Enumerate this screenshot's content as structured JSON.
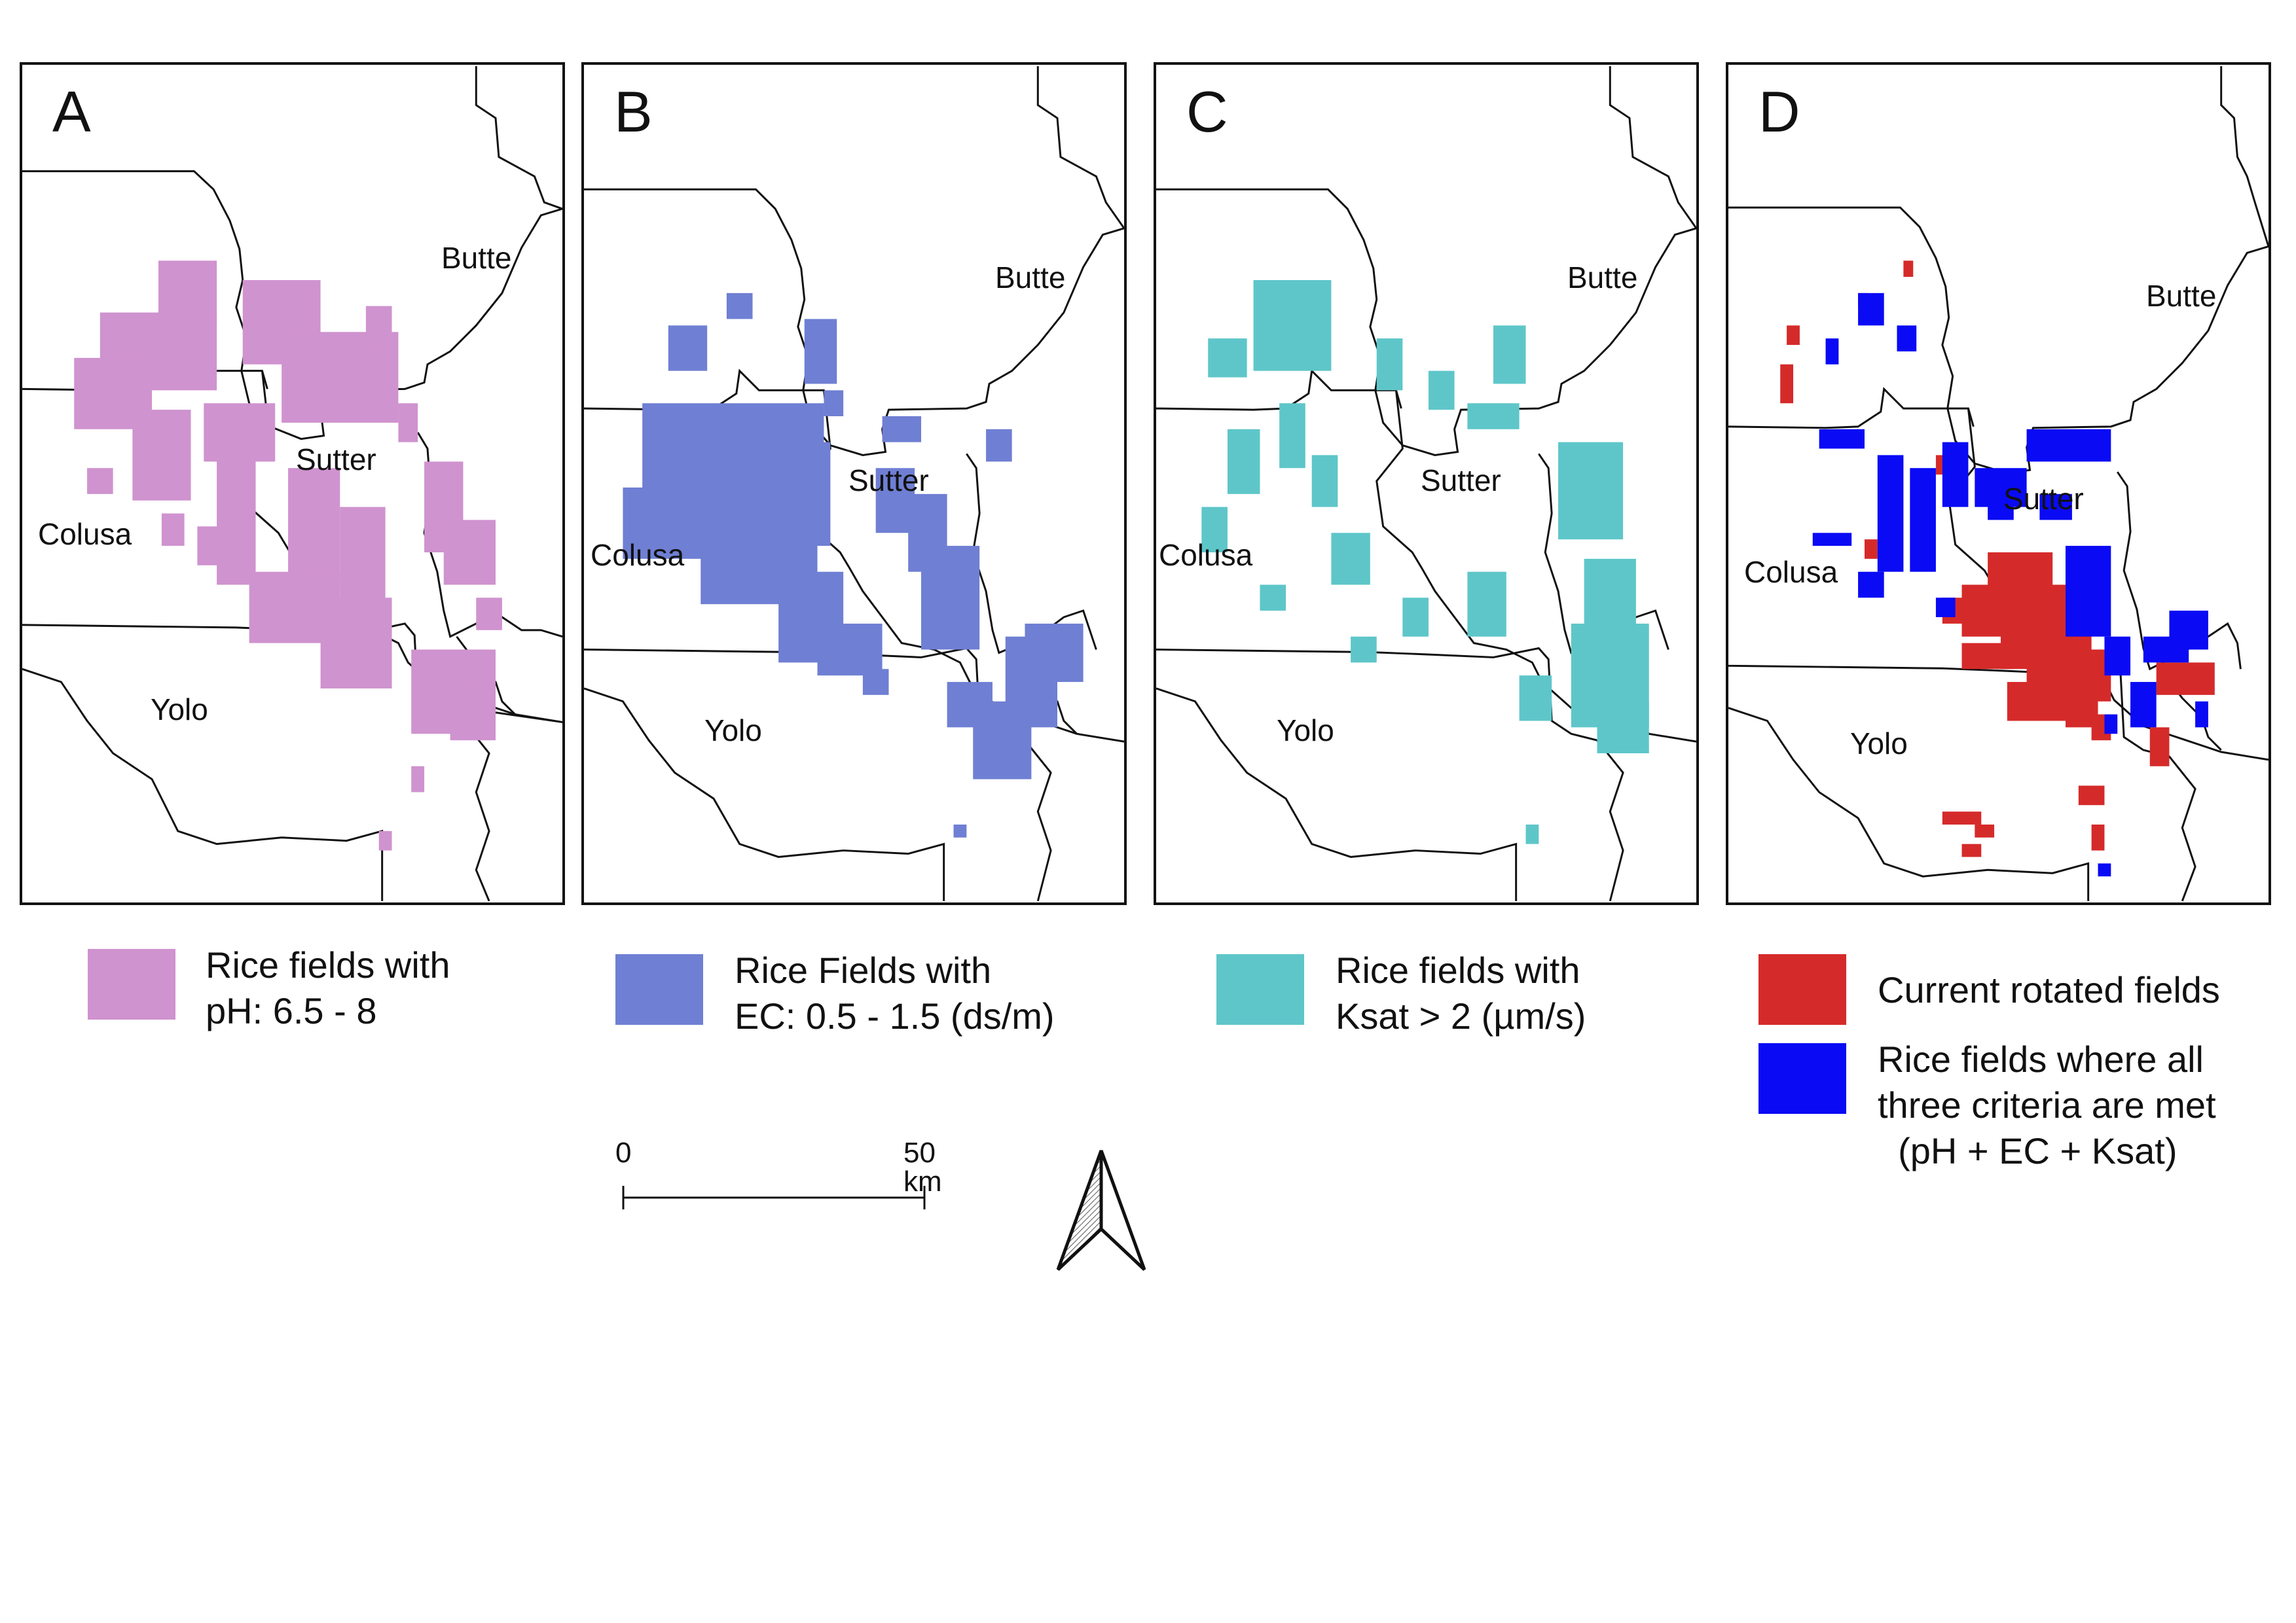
{
  "panels": [
    {
      "letter": "A",
      "fill": "#cf93cf",
      "counties": {
        "butte": "Butte",
        "sutter": "Sutter",
        "colusa": "Colusa",
        "yolo": "Yolo"
      },
      "legend": {
        "line1": "Rice fields with",
        "line2": "pH: 6.5 - 8"
      }
    },
    {
      "letter": "B",
      "fill": "#6f7fd3",
      "counties": {
        "butte": "Butte",
        "sutter": "Sutter",
        "colusa": "Colusa",
        "yolo": "Yolo"
      },
      "legend": {
        "line1": "Rice Fields with",
        "line2": "EC: 0.5 - 1.5 (ds/m)"
      }
    },
    {
      "letter": "C",
      "fill": "#5ec6c9",
      "counties": {
        "butte": "Butte",
        "sutter": "Sutter",
        "colusa": "Colusa",
        "yolo": "Yolo"
      },
      "legend": {
        "line1": "Rice fields with",
        "line2": "Ksat > 2 (µm/s)"
      }
    },
    {
      "letter": "D",
      "counties": {
        "butte": "Butte",
        "sutter": "Sutter",
        "colusa": "Colusa",
        "yolo": "Yolo"
      },
      "legend_red": {
        "label": "Current rotated fields",
        "color": "#d52a2a"
      },
      "legend_blue": {
        "line1": "Rice fields where all",
        "line2": "three criteria are met",
        "line3": "  (pH + EC + Ksat)",
        "color": "#0a0af5"
      }
    }
  ],
  "scale_bar": {
    "start": "0",
    "end": "50 km"
  },
  "north_arrow": {
    "icon": "north-arrow-icon"
  }
}
